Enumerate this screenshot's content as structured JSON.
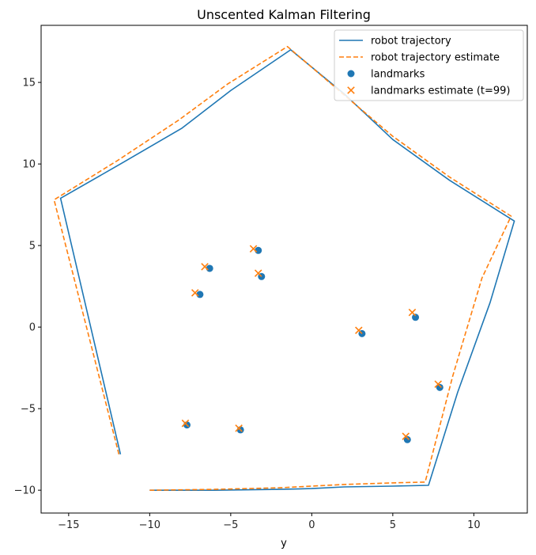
{
  "chart_data": {
    "type": "line",
    "title": "Unscented Kalman Filtering",
    "xlabel": "y",
    "ylabel": "",
    "xlim": [
      -16.7,
      13.3
    ],
    "ylim": [
      -11.4,
      18.5
    ],
    "xticks": [
      -15,
      -10,
      -5,
      0,
      5,
      10
    ],
    "yticks": [
      -10,
      -5,
      0,
      5,
      10,
      15
    ],
    "grid": false,
    "legend_position": "top-right",
    "colors": {
      "trajectory": "#1f77b4",
      "estimate": "#ff7f0e"
    },
    "series": [
      {
        "name": "robot trajectory",
        "kind": "line",
        "x": [
          -11.8,
          -15.5,
          -11.8,
          -8.0,
          -5.0,
          -1.3,
          2.0,
          5.0,
          8.5,
          12.5,
          11.0,
          9.0,
          7.2,
          5.0,
          2.0,
          0.0,
          -2.0,
          -6.0,
          -10.0
        ],
        "y": [
          -7.8,
          7.9,
          10.0,
          12.2,
          14.5,
          17.0,
          14.3,
          11.5,
          9.0,
          6.5,
          1.5,
          -4.0,
          -9.7,
          -9.75,
          -9.8,
          -9.9,
          -9.95,
          -10.0,
          -10.0
        ]
      },
      {
        "name": "robot trajectory estimate",
        "kind": "dashed-line",
        "x": [
          -11.9,
          -15.9,
          -12.0,
          -8.2,
          -5.2,
          -1.5,
          1.8,
          5.0,
          8.5,
          12.3,
          10.5,
          8.7,
          7.0,
          5.0,
          2.0,
          0.0,
          -2.0,
          -6.0,
          -10.0
        ],
        "y": [
          -7.8,
          7.8,
          10.2,
          12.7,
          14.9,
          17.2,
          14.4,
          11.7,
          9.2,
          6.8,
          3.0,
          -3.0,
          -9.5,
          -9.55,
          -9.65,
          -9.75,
          -9.85,
          -9.95,
          -10.0
        ]
      },
      {
        "name": "landmarks",
        "kind": "scatter-dot",
        "x": [
          -3.3,
          -3.1,
          -6.3,
          -6.9,
          3.1,
          6.4,
          7.9,
          5.9,
          -4.4,
          -7.7
        ],
        "y": [
          4.7,
          3.1,
          3.6,
          2.0,
          -0.4,
          0.6,
          -3.7,
          -6.9,
          -6.3,
          -6.0
        ]
      },
      {
        "name": "landmarks estimate (t=99)",
        "kind": "scatter-x",
        "x": [
          -3.6,
          -3.3,
          -6.6,
          -7.2,
          2.9,
          6.2,
          7.8,
          5.8,
          -4.5,
          -7.8
        ],
        "y": [
          4.8,
          3.3,
          3.7,
          2.1,
          -0.2,
          0.9,
          -3.5,
          -6.7,
          -6.2,
          -5.9
        ]
      }
    ]
  }
}
